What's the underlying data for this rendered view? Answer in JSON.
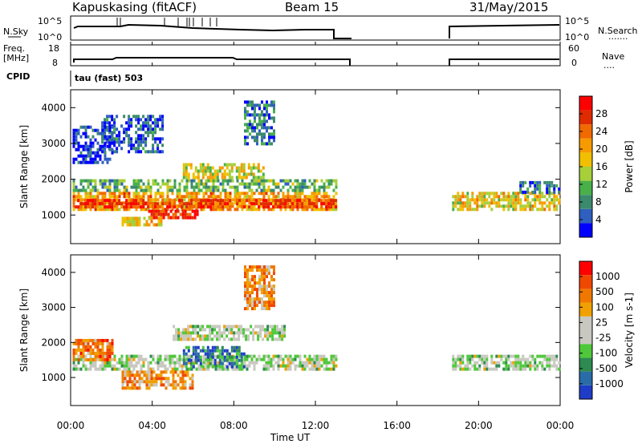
{
  "header": {
    "station": "Kapuskasing (fitACF)",
    "beam": "Beam 15",
    "date": "31/May/2015"
  },
  "noise_panel": {
    "left_label": "N.Sky",
    "right_label": "N.Search",
    "right_dots": "·······",
    "left_ticks": [
      "10^5",
      "10^0"
    ],
    "right_ticks": [
      "10^5",
      "10^0"
    ]
  },
  "freq_panel": {
    "left_label_1": "Freq.",
    "left_label_2": "[MHz]",
    "right_label": "Nave",
    "right_dots": "····",
    "left_ticks": [
      "18",
      "8"
    ],
    "right_ticks": [
      "60",
      "0"
    ]
  },
  "cpid": {
    "label": "CPID",
    "text": "tau (fast) 503"
  },
  "chart_data": [
    {
      "type": "heatmap",
      "title": "",
      "xlabel": "Time UT",
      "ylabel": "Slant Range [km]",
      "x_range_hours": [
        0,
        24
      ],
      "ylim": [
        200,
        4500
      ],
      "yticks": [
        "1000",
        "2000",
        "3000",
        "4000"
      ],
      "colorbar": {
        "label": "Power [dB]",
        "ticks": [
          "4",
          "8",
          "12",
          "16",
          "20",
          "24",
          "28"
        ],
        "colors": [
          "#0000ff",
          "#2f5fbf",
          "#3c8a6e",
          "#49b049",
          "#a6cf3a",
          "#f0c000",
          "#f79a00",
          "#f06a00",
          "#e02a00",
          "#ff0000"
        ]
      },
      "regions": [
        {
          "t0": 0.1,
          "t1": 13.0,
          "r0": 1150,
          "r1": 1650,
          "level": 0.65
        },
        {
          "t0": 0.1,
          "t1": 13.0,
          "r0": 1650,
          "r1": 2000,
          "level": 0.35
        },
        {
          "t0": 3.8,
          "t1": 6.2,
          "r0": 900,
          "r1": 1150,
          "level": 0.9
        },
        {
          "t0": 2.5,
          "t1": 4.5,
          "r0": 700,
          "r1": 950,
          "level": 0.55
        },
        {
          "t0": 5.5,
          "t1": 9.5,
          "r0": 2050,
          "r1": 2450,
          "level": 0.5
        },
        {
          "t0": 0.2,
          "t1": 13.0,
          "r0": 1200,
          "r1": 1450,
          "level": 0.8
        },
        {
          "t0": 18.7,
          "t1": 24.0,
          "r0": 1150,
          "r1": 1650,
          "level": 0.55
        },
        {
          "t0": 22.0,
          "t1": 24.0,
          "r0": 1650,
          "r1": 1950,
          "level": 0.2
        },
        {
          "t0": 8.5,
          "t1": 10.0,
          "r0": 3000,
          "r1": 4200,
          "level": 0.2
        },
        {
          "t0": 1.5,
          "t1": 4.5,
          "r0": 2800,
          "r1": 3800,
          "level": 0.15
        },
        {
          "t0": 0.1,
          "t1": 2.0,
          "r0": 2500,
          "r1": 3500,
          "level": 0.1
        }
      ]
    },
    {
      "type": "heatmap",
      "title": "",
      "xlabel": "Time UT",
      "ylabel": "Slant Range [km]",
      "x_range_hours": [
        0,
        24
      ],
      "ylim": [
        200,
        4500
      ],
      "yticks": [
        "1000",
        "2000",
        "3000",
        "4000"
      ],
      "xticks": [
        "00:00",
        "04:00",
        "08:00",
        "12:00",
        "16:00",
        "20:00",
        "00:00"
      ],
      "colorbar": {
        "label": "Velocity [m s-1]",
        "ticks": [
          "1000",
          "500",
          "100",
          "25",
          "-25",
          "-100",
          "-500",
          "-1000"
        ],
        "colors": [
          "#1e3cc8",
          "#2a6ca8",
          "#2e8a50",
          "#4ec83a",
          "#c8c8c0",
          "#c8c8c0",
          "#f0a000",
          "#f07800",
          "#f04800",
          "#ff0000"
        ]
      },
      "regions": [
        {
          "t0": 0.1,
          "t1": 13.0,
          "r0": 1200,
          "r1": 1650,
          "level": 0.45
        },
        {
          "t0": 2.5,
          "t1": 6.0,
          "r0": 700,
          "r1": 1200,
          "level": 0.7
        },
        {
          "t0": 5.5,
          "t1": 8.5,
          "r0": 1350,
          "r1": 1900,
          "level": 0.2
        },
        {
          "t0": 5.0,
          "t1": 10.5,
          "r0": 2050,
          "r1": 2500,
          "level": 0.45
        },
        {
          "t0": 18.7,
          "t1": 24.0,
          "r0": 1200,
          "r1": 1650,
          "level": 0.45
        },
        {
          "t0": 8.5,
          "t1": 10.0,
          "r0": 3000,
          "r1": 4200,
          "level": 0.7
        },
        {
          "t0": 0.1,
          "t1": 2.0,
          "r0": 1500,
          "r1": 2100,
          "level": 0.75
        }
      ]
    }
  ]
}
